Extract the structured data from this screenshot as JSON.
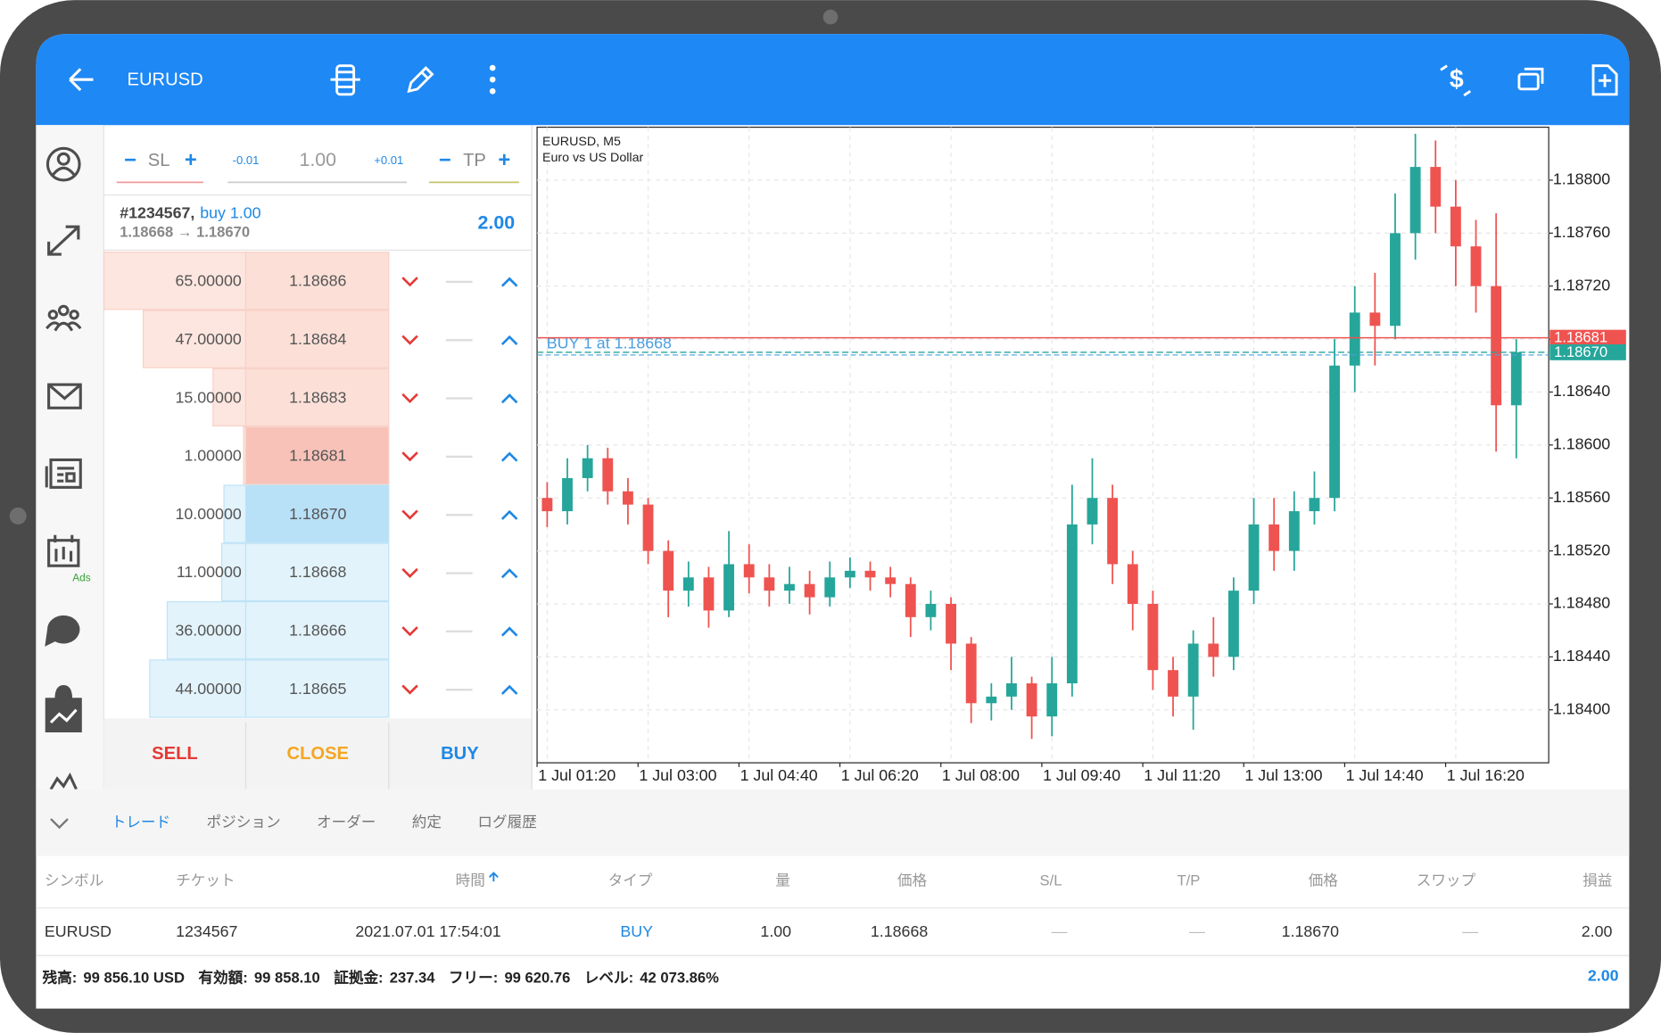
{
  "header": {
    "symbol": "EURUSD"
  },
  "order_panel": {
    "sl": "SL",
    "tp": "TP",
    "minus": "-0.01",
    "volume": "1.00",
    "plus": "+0.01"
  },
  "position": {
    "ticket": "#1234567,",
    "type": "buy 1.00",
    "prices": "1.18668 → 1.18670",
    "profit": "2.00"
  },
  "depth": [
    {
      "volume": 65,
      "volume_label": "65.00000",
      "price": "1.18686",
      "side": "sell"
    },
    {
      "volume": 47,
      "volume_label": "47.00000",
      "price": "1.18684",
      "side": "sell"
    },
    {
      "volume": 15,
      "volume_label": "15.00000",
      "price": "1.18683",
      "side": "sell"
    },
    {
      "volume": 1,
      "volume_label": "1.00000",
      "price": "1.18681",
      "side": "sell"
    },
    {
      "volume": 10,
      "volume_label": "10.00000",
      "price": "1.18670",
      "side": "buy"
    },
    {
      "volume": 11,
      "volume_label": "11.00000",
      "price": "1.18668",
      "side": "buy"
    },
    {
      "volume": 36,
      "volume_label": "36.00000",
      "price": "1.18666",
      "side": "buy"
    },
    {
      "volume": 44,
      "volume_label": "44.00000",
      "price": "1.18665",
      "side": "buy"
    }
  ],
  "buttons": {
    "sell": "SELL",
    "close": "CLOSE",
    "buy": "BUY"
  },
  "sidebar": {
    "ads": "Ads"
  },
  "chart_data": {
    "type": "candlestick",
    "title": "EURUSD, M5",
    "subtitle": "Euro vs US Dollar",
    "categories": [
      "1 Jul 01:20",
      null,
      null,
      null,
      null,
      "1 Jul 03:00",
      null,
      null,
      null,
      null,
      "1 Jul 04:40",
      null,
      null,
      null,
      null,
      "1 Jul 06:20",
      null,
      null,
      null,
      null,
      "1 Jul 08:00",
      null,
      null,
      null,
      null,
      "1 Jul 09:40",
      null,
      null,
      null,
      null,
      "1 Jul 11:20",
      null,
      null,
      null,
      null,
      "1 Jul 13:00",
      null,
      null,
      null,
      null,
      "1 Jul 14:40",
      null,
      null,
      null,
      null,
      "1 Jul 16:20",
      null,
      null,
      null
    ],
    "open": [
      1.1856,
      1.1855,
      1.18575,
      1.1859,
      1.18565,
      1.18555,
      1.1852,
      1.1849,
      1.185,
      1.18475,
      1.1851,
      1.185,
      1.1849,
      1.18495,
      1.18485,
      1.185,
      1.18505,
      1.185,
      1.18495,
      1.1847,
      1.1848,
      1.1845,
      1.18405,
      1.1841,
      1.1842,
      1.18395,
      1.1842,
      1.1854,
      1.1856,
      1.1851,
      1.1848,
      1.1843,
      1.1841,
      1.1845,
      1.1844,
      1.1849,
      1.1854,
      1.1852,
      1.1855,
      1.1856,
      1.1866,
      1.187,
      1.1869,
      1.1876,
      1.1881,
      1.1878,
      1.1875,
      1.1872,
      1.1863
    ],
    "high": [
      1.18572,
      1.1859,
      1.186,
      1.18598,
      1.18575,
      1.1856,
      1.18528,
      1.18512,
      1.18508,
      1.18535,
      1.18525,
      1.1851,
      1.18508,
      1.18505,
      1.18512,
      1.18515,
      1.18512,
      1.18508,
      1.185,
      1.1849,
      1.18485,
      1.18455,
      1.1842,
      1.1844,
      1.18425,
      1.1844,
      1.1857,
      1.1859,
      1.1857,
      1.1852,
      1.1849,
      1.1844,
      1.1846,
      1.1847,
      1.185,
      1.1856,
      1.1856,
      1.18565,
      1.1858,
      1.1868,
      1.1872,
      1.1873,
      1.1879,
      1.18835,
      1.1883,
      1.188,
      1.1877,
      1.18775,
      1.1868
    ],
    "low": [
      1.18538,
      1.1854,
      1.18565,
      1.18555,
      1.1854,
      1.1851,
      1.1847,
      1.18478,
      1.18462,
      1.1847,
      1.18488,
      1.18478,
      1.1848,
      1.18472,
      1.18478,
      1.18492,
      1.1849,
      1.18485,
      1.18455,
      1.1846,
      1.1843,
      1.1839,
      1.18392,
      1.184,
      1.18378,
      1.1838,
      1.1841,
      1.18525,
      1.18495,
      1.1846,
      1.18415,
      1.18395,
      1.18385,
      1.18425,
      1.1843,
      1.1848,
      1.18505,
      1.18505,
      1.1854,
      1.1855,
      1.1864,
      1.1866,
      1.1868,
      1.1874,
      1.1876,
      1.1872,
      1.187,
      1.18595,
      1.1859
    ],
    "close": [
      1.1855,
      1.18575,
      1.1859,
      1.18565,
      1.18555,
      1.1852,
      1.1849,
      1.185,
      1.18475,
      1.1851,
      1.185,
      1.1849,
      1.18495,
      1.18485,
      1.185,
      1.18505,
      1.185,
      1.18495,
      1.1847,
      1.1848,
      1.1845,
      1.18405,
      1.1841,
      1.1842,
      1.18395,
      1.1842,
      1.1854,
      1.1856,
      1.1851,
      1.1848,
      1.1843,
      1.1841,
      1.1845,
      1.1844,
      1.1849,
      1.1854,
      1.1852,
      1.1855,
      1.1856,
      1.1866,
      1.187,
      1.1869,
      1.1876,
      1.1881,
      1.1878,
      1.1875,
      1.1872,
      1.1863,
      1.1867
    ],
    "up_color": "#26a69a",
    "down_color": "#ef5350",
    "ylim": [
      1.1836,
      1.1884
    ],
    "yticks": [
      {
        "value": 1.184,
        "label": "1.18400"
      },
      {
        "value": 1.1844,
        "label": "1.18440"
      },
      {
        "value": 1.1848,
        "label": "1.18480"
      },
      {
        "value": 1.1852,
        "label": "1.18520"
      },
      {
        "value": 1.1856,
        "label": "1.18560"
      },
      {
        "value": 1.186,
        "label": "1.18600"
      },
      {
        "value": 1.1864,
        "label": "1.18640"
      },
      {
        "value": 1.1868,
        "label": "1.18680"
      },
      {
        "value": 1.1872,
        "label": "1.18720"
      },
      {
        "value": 1.1876,
        "label": "1.18760"
      },
      {
        "value": 1.188,
        "label": "1.18800"
      }
    ],
    "grid": true,
    "bid": {
      "value": 1.18681,
      "label": "1.18681",
      "color": "#ef5350"
    },
    "ask": {
      "value": 1.1867,
      "label": "1.18670",
      "color": "#26a69a"
    },
    "trade_line": {
      "value": 1.18668,
      "label": "BUY 1 at 1.18668",
      "color": "#4a9fe0"
    }
  },
  "tabs": [
    "トレード",
    "ポジション",
    "オーダー",
    "約定",
    "ログ履歴"
  ],
  "table": {
    "columns": [
      "シンボル",
      "チケット",
      "時間",
      "タイプ",
      "量",
      "価格",
      "S/L",
      "T/P",
      "価格",
      "スワップ",
      "損益"
    ],
    "rows": [
      [
        "EURUSD",
        "1234567",
        "2021.07.01 17:54:01",
        "BUY",
        "1.00",
        "1.18668",
        "—",
        "—",
        "1.18670",
        "—",
        "2.00"
      ]
    ]
  },
  "account": {
    "items": [
      {
        "label": "残高:",
        "value": "99 856.10 USD"
      },
      {
        "label": "有効額:",
        "value": "99 858.10"
      },
      {
        "label": "証拠金:",
        "value": "237.34"
      },
      {
        "label": "フリー:",
        "value": "99 620.76"
      },
      {
        "label": "レベル:",
        "value": "42 073.86%"
      }
    ],
    "profit": "2.00"
  }
}
